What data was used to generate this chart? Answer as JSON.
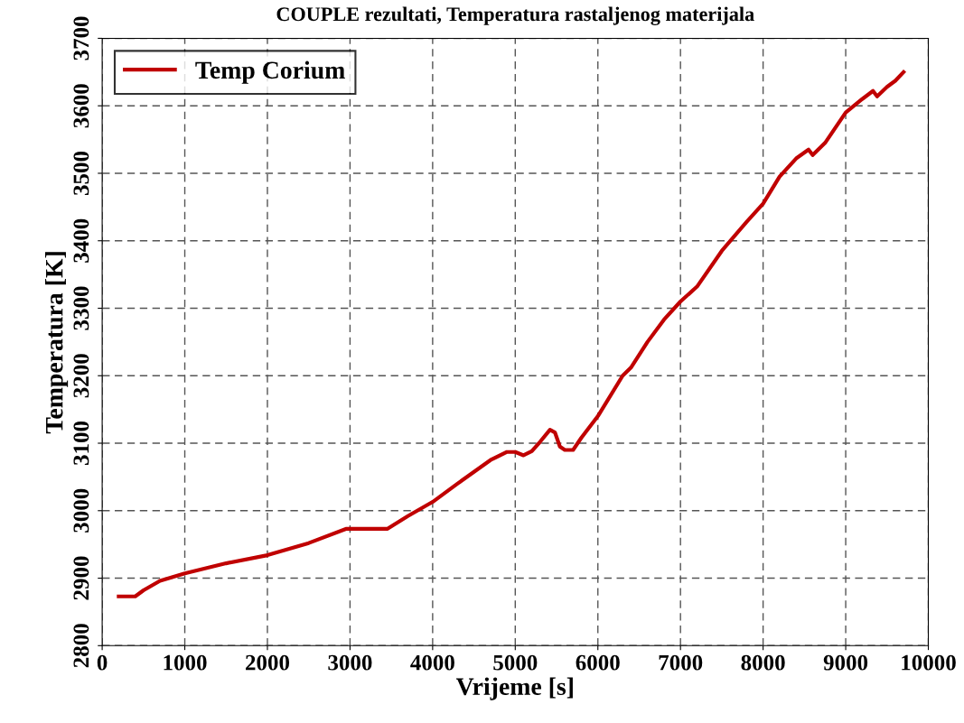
{
  "chart_data": {
    "type": "line",
    "title": "COUPLE rezultati, Temperatura rastaljenog materijala",
    "xlabel": "Vrijeme [s]",
    "ylabel": "Temperatura [K]",
    "x": [
      200,
      400,
      500,
      700,
      1000,
      1500,
      2000,
      2500,
      2950,
      3450,
      3700,
      4000,
      4300,
      4700,
      4900,
      5000,
      5100,
      5200,
      5300,
      5420,
      5480,
      5540,
      5600,
      5700,
      5800,
      6000,
      6300,
      6400,
      6600,
      6800,
      7000,
      7200,
      7500,
      7800,
      8000,
      8200,
      8400,
      8550,
      8600,
      8750,
      9000,
      9200,
      9330,
      9380,
      9500,
      9600,
      9700
    ],
    "series": [
      {
        "name": "Temp Corium",
        "color": "#c00000",
        "values": [
          2873,
          2873,
          2882,
          2896,
          2907,
          2922,
          2934,
          2952,
          2973,
          2973,
          2992,
          3013,
          3040,
          3075,
          3087,
          3087,
          3082,
          3088,
          3102,
          3120,
          3116,
          3095,
          3090,
          3090,
          3108,
          3140,
          3200,
          3212,
          3250,
          3283,
          3310,
          3332,
          3385,
          3428,
          3455,
          3495,
          3522,
          3535,
          3527,
          3545,
          3590,
          3610,
          3622,
          3614,
          3628,
          3637,
          3650
        ]
      }
    ],
    "xlim": [
      0,
      10000
    ],
    "ylim": [
      2800,
      3700
    ],
    "xticks": [
      0,
      1000,
      2000,
      3000,
      4000,
      5000,
      6000,
      7000,
      8000,
      9000,
      10000
    ],
    "yticks": [
      2800,
      2900,
      3000,
      3100,
      3200,
      3300,
      3400,
      3500,
      3600,
      3700
    ],
    "grid": true,
    "legend": "top left",
    "line_style": "solid",
    "marker": "none"
  }
}
